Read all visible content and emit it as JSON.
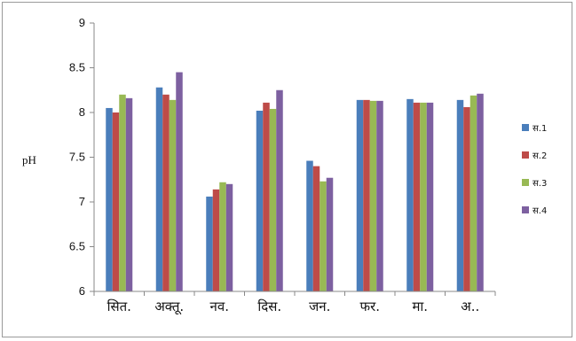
{
  "chart_data": {
    "type": "bar",
    "title": "",
    "xlabel": "",
    "ylabel": "pH",
    "ylim": [
      6,
      9
    ],
    "yticks": [
      "6",
      "6.5",
      "7",
      "7.5",
      "8",
      "8.5",
      "9"
    ],
    "grid": false,
    "legend_position": "right",
    "categories": [
      "सित.",
      "अक्तू.",
      "नव.",
      "दिस.",
      "जन.",
      "फर.",
      "मा.",
      "अ.."
    ],
    "series": [
      {
        "name": "स.1",
        "color": "#4a7ebb",
        "values": [
          8.05,
          8.28,
          7.06,
          8.02,
          7.46,
          8.14,
          8.15,
          8.14
        ]
      },
      {
        "name": "स.2",
        "color": "#be4b48",
        "values": [
          8.0,
          8.2,
          7.14,
          8.11,
          7.4,
          8.14,
          8.11,
          8.06
        ]
      },
      {
        "name": "स.3",
        "color": "#98b954",
        "values": [
          8.2,
          8.14,
          7.22,
          8.04,
          7.23,
          8.13,
          8.11,
          8.19
        ]
      },
      {
        "name": "स.4",
        "color": "#7d60a0",
        "values": [
          8.16,
          8.45,
          7.2,
          8.25,
          7.27,
          8.13,
          8.11,
          8.21
        ]
      }
    ]
  }
}
